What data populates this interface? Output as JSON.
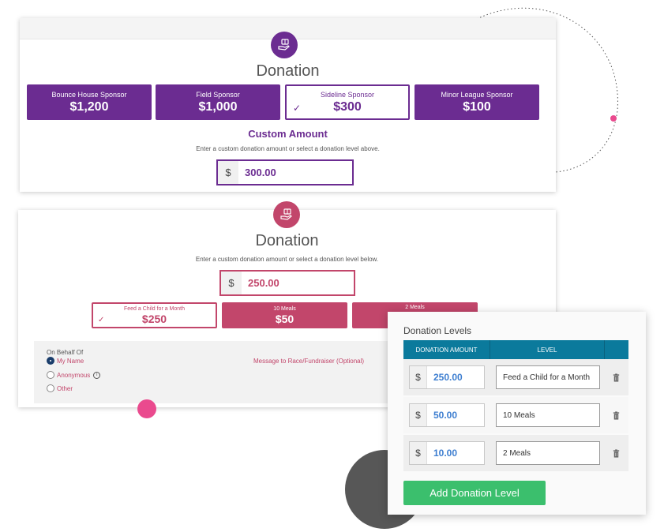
{
  "card_top": {
    "badge_icon": "donation-hand-icon",
    "title": "Donation",
    "levels": [
      {
        "name": "Bounce House Sponsor",
        "amount": "$1,200"
      },
      {
        "name": "Field Sponsor",
        "amount": "$1,000"
      },
      {
        "name": "Sideline Sponsor",
        "amount": "$300",
        "selected": true
      },
      {
        "name": "Minor League Sponsor",
        "amount": "$100"
      }
    ],
    "custom_title": "Custom Amount",
    "helper": "Enter a custom donation amount or select a donation level above.",
    "currency": "$",
    "amount": "300.00",
    "accent": "#6b2c91"
  },
  "card_bottom": {
    "badge_icon": "donation-hand-icon",
    "title": "Donation",
    "helper": "Enter a custom donation amount or select a donation level below.",
    "currency": "$",
    "amount": "250.00",
    "levels": [
      {
        "name": "Feed a Child for a Month",
        "amount": "$250",
        "selected": true
      },
      {
        "name": "10 Meals",
        "amount": "$50"
      },
      {
        "name": "2 Meals",
        "amount": ""
      }
    ],
    "behalf": {
      "label": "On Behalf Of",
      "options": [
        "My Name",
        "Anonymous",
        "Other"
      ],
      "selected": "My Name"
    },
    "message_label": "Message to Race/Fundraiser (Optional)",
    "accent": "#c2466b"
  },
  "admin_panel": {
    "title": "Donation Levels",
    "columns": [
      "DONATION AMOUNT",
      "LEVEL"
    ],
    "rows": [
      {
        "currency": "$",
        "amount": "250.00",
        "level": "Feed a Child for a Month"
      },
      {
        "currency": "$",
        "amount": "50.00",
        "level": "10 Meals"
      },
      {
        "currency": "$",
        "amount": "10.00",
        "level": "2 Meals"
      }
    ],
    "delete_icon": "trash-icon",
    "add_label": "Add Donation Level",
    "header_color": "#0b7a9c",
    "add_color": "#3bbf6d"
  }
}
